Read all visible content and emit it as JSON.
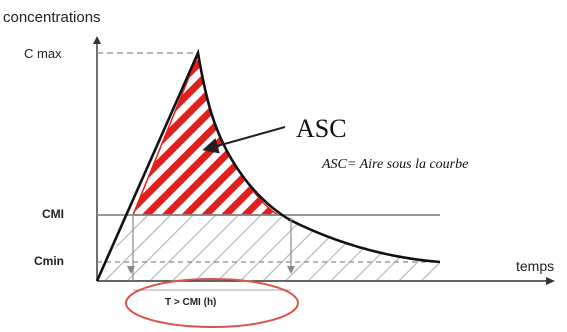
{
  "diagram": {
    "y_axis_label": "concentrations",
    "x_axis_label": "temps",
    "cmax_label": "C max",
    "cmi_label": "CMI",
    "cmin_label": "Cmin",
    "asc_label": "ASC",
    "asc_definition": "ASC= Aire sous la courbe",
    "time_above_cmi_label": "T > CMI (h)",
    "colors": {
      "curve": "#111111",
      "hatch_red": "#e0201c",
      "hatch_grey": "#b8b8b8",
      "reference_line": "#8a8a8a",
      "ellipse": "#d9534f"
    }
  }
}
